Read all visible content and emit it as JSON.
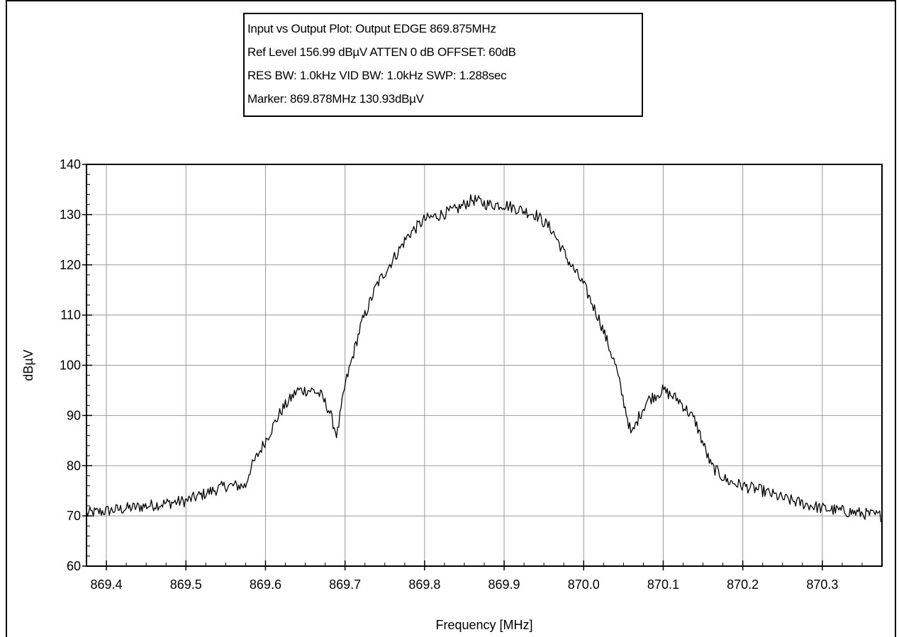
{
  "info": {
    "line1": "Input vs Output Plot: Output EDGE 869.875MHz",
    "line2": "Ref Level 156.99 dBµV    ATTEN 0 dB    OFFSET: 60dB",
    "line3": "RES BW: 1.0kHz  VID BW: 1.0kHz  SWP: 1.288sec",
    "line4": "Marker: 869.878MHz  130.93dBµV"
  },
  "chart_data": {
    "type": "line",
    "xlabel": "Frequency [MHz]",
    "ylabel": "dBµV",
    "xlim": [
      869.375,
      870.375
    ],
    "ylim": [
      60,
      140
    ],
    "xticks": [
      "869.4",
      "869.5",
      "869.6",
      "869.7",
      "869.8",
      "869.9",
      "870.0",
      "870.1",
      "870.2",
      "870.3"
    ],
    "xtick_values": [
      869.4,
      869.5,
      869.6,
      869.7,
      869.8,
      869.9,
      870.0,
      870.1,
      870.2,
      870.3
    ],
    "yticks": [
      "60",
      "70",
      "80",
      "90",
      "100",
      "110",
      "120",
      "130",
      "140"
    ],
    "ytick_values": [
      60,
      70,
      80,
      90,
      100,
      110,
      120,
      130,
      140
    ],
    "grid": true,
    "line_color": "#000000",
    "series": [
      {
        "x": [
          869.375,
          869.4,
          869.425,
          869.45,
          869.475,
          869.5,
          869.525,
          869.55,
          869.575,
          869.58,
          869.6,
          869.62,
          869.64,
          869.66,
          869.67,
          869.68,
          869.69,
          869.7,
          869.72,
          869.74,
          869.76,
          869.78,
          869.8,
          869.82,
          869.84,
          869.86,
          869.88,
          869.9,
          869.92,
          869.94,
          869.96,
          869.98,
          870.0,
          870.02,
          870.04,
          870.06,
          870.07,
          870.08,
          870.1,
          870.12,
          870.14,
          870.16,
          870.18,
          870.2,
          870.225,
          870.25,
          870.275,
          870.3,
          870.325,
          870.35,
          870.375
        ],
        "y": [
          70.5,
          71,
          71.5,
          72,
          72.5,
          73,
          74.5,
          76,
          76,
          79,
          85,
          91,
          95,
          95,
          94,
          91,
          86,
          96,
          108,
          116,
          121,
          126,
          129,
          130,
          131,
          133,
          132,
          132,
          131,
          130,
          127,
          121,
          116,
          109,
          100,
          86,
          90,
          93,
          95,
          93,
          89,
          80,
          77,
          76,
          75,
          73.5,
          72.5,
          71.5,
          71,
          70.5,
          70
        ]
      }
    ]
  }
}
